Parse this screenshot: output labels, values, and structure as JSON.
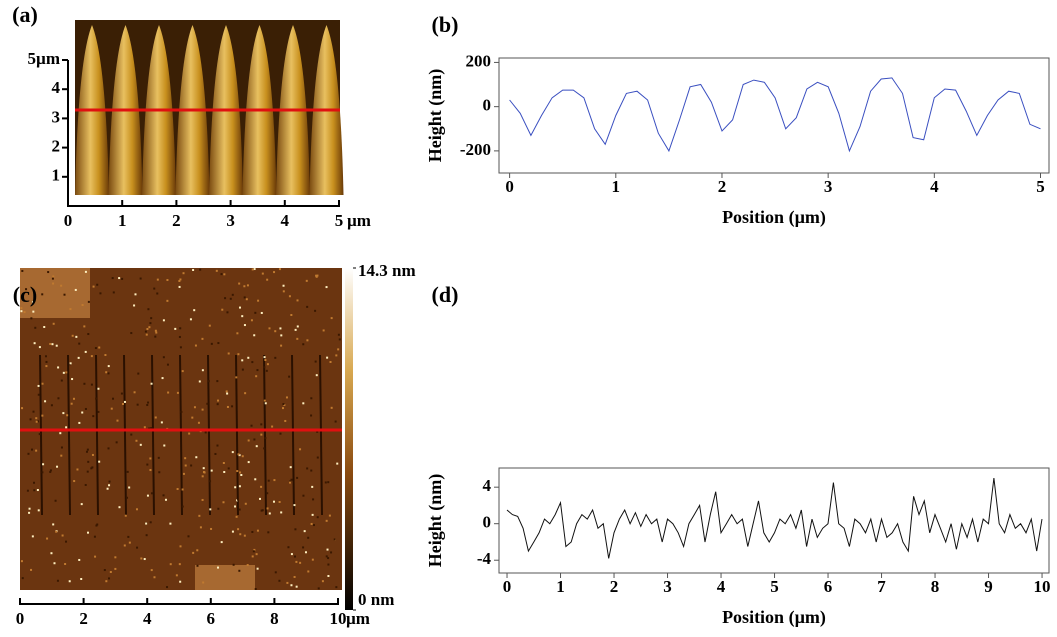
{
  "chart_data": [
    {
      "type": "image",
      "panel_label": "(a)",
      "xlim": [
        0,
        5
      ],
      "xticks": [
        0,
        1,
        2,
        3,
        4,
        5
      ],
      "ylim": [
        0,
        5
      ],
      "yticks": [
        1,
        2,
        3,
        4,
        {
          "value": 5,
          "label": "5µm"
        }
      ],
      "x_unit": "µm"
    },
    {
      "type": "line",
      "panel_label": "(b)",
      "xlabel": "Position (µm)",
      "ylabel": "Height (nm)",
      "color": "#3a4fc0",
      "xlim": [
        -0.1,
        5.08
      ],
      "xticks": [
        0,
        1,
        2,
        3,
        4,
        5
      ],
      "ylim": [
        -300,
        220
      ],
      "yticks": [
        -200,
        0,
        200
      ],
      "x": [
        0,
        0.1,
        0.2,
        0.3,
        0.4,
        0.5,
        0.6,
        0.7,
        0.8,
        0.9,
        1,
        1.1,
        1.2,
        1.3,
        1.4,
        1.5,
        1.6,
        1.7,
        1.8,
        1.9,
        2,
        2.1,
        2.2,
        2.3,
        2.4,
        2.5,
        2.6,
        2.7,
        2.8,
        2.9,
        3,
        3.1,
        3.2,
        3.3,
        3.4,
        3.5,
        3.6,
        3.7,
        3.8,
        3.9,
        4,
        4.1,
        4.2,
        4.3,
        4.4,
        4.5,
        4.6,
        4.7,
        4.8,
        4.9,
        5
      ],
      "values": [
        30,
        -30,
        -130,
        -40,
        40,
        75,
        75,
        40,
        -100,
        -170,
        -40,
        60,
        70,
        30,
        -120,
        -200,
        -60,
        90,
        100,
        20,
        -110,
        -60,
        100,
        120,
        110,
        40,
        -100,
        -50,
        80,
        110,
        90,
        -30,
        -200,
        -90,
        70,
        125,
        130,
        60,
        -140,
        -150,
        40,
        80,
        75,
        -20,
        -130,
        -40,
        30,
        70,
        60,
        -80,
        -100
      ]
    },
    {
      "type": "image",
      "panel_label": "(c)",
      "xlim": [
        0,
        10
      ],
      "xticks": [
        0,
        2,
        4,
        6,
        8,
        10
      ],
      "x_unit": "µm",
      "colorbar": {
        "lim": [
          0,
          14.3
        ],
        "ticks": [
          {
            "value": 0,
            "label": "0 nm"
          },
          {
            "value": 14.3,
            "label": "14.3 nm"
          }
        ]
      }
    },
    {
      "type": "line",
      "panel_label": "(d)",
      "xlabel": "Position (µm)",
      "ylabel": "Height (nm)",
      "color": "#111111",
      "xlim": [
        -0.15,
        10.13
      ],
      "xticks": [
        0,
        1,
        2,
        3,
        4,
        5,
        6,
        7,
        8,
        9,
        10
      ],
      "ylim": [
        -5.4,
        6.1
      ],
      "yticks": [
        -4,
        0,
        4
      ],
      "x": [
        0,
        0.1,
        0.2,
        0.3,
        0.4,
        0.5,
        0.6,
        0.7,
        0.8,
        0.9,
        1,
        1.1,
        1.2,
        1.3,
        1.4,
        1.5,
        1.6,
        1.7,
        1.8,
        1.9,
        2,
        2.1,
        2.2,
        2.3,
        2.4,
        2.5,
        2.6,
        2.7,
        2.8,
        2.9,
        3,
        3.1,
        3.2,
        3.3,
        3.4,
        3.5,
        3.6,
        3.7,
        3.8,
        3.9,
        4,
        4.1,
        4.2,
        4.3,
        4.4,
        4.5,
        4.6,
        4.7,
        4.8,
        4.9,
        5,
        5.1,
        5.2,
        5.3,
        5.4,
        5.5,
        5.6,
        5.7,
        5.8,
        5.9,
        6,
        6.1,
        6.2,
        6.3,
        6.4,
        6.5,
        6.6,
        6.7,
        6.8,
        6.9,
        7,
        7.1,
        7.2,
        7.3,
        7.4,
        7.5,
        7.6,
        7.7,
        7.8,
        7.9,
        8,
        8.1,
        8.2,
        8.3,
        8.4,
        8.5,
        8.6,
        8.7,
        8.8,
        8.9,
        9,
        9.1,
        9.2,
        9.3,
        9.4,
        9.5,
        9.6,
        9.7,
        9.8,
        9.9,
        10
      ],
      "values": [
        1.5,
        1,
        0.8,
        -0.5,
        -3,
        -2,
        -1,
        0.5,
        0,
        1,
        2.3,
        -2.5,
        -2,
        0,
        1,
        0.5,
        1.5,
        -0.5,
        0,
        -3.8,
        -1,
        0.5,
        1.5,
        0,
        1.2,
        -0.3,
        1,
        0,
        0.5,
        -2,
        0.5,
        0,
        -1,
        -2.5,
        0,
        1,
        2,
        -2,
        1,
        3.5,
        -1,
        0,
        1,
        0,
        0.5,
        -2.5,
        0,
        2.5,
        -1,
        -2,
        -1,
        0.5,
        0,
        1,
        -0.5,
        1.5,
        -2.5,
        0.5,
        -1.5,
        -0.5,
        0,
        4.5,
        0,
        -0.5,
        -2.5,
        0.5,
        0,
        -1,
        0.5,
        -2,
        0.5,
        -1.5,
        -1,
        0,
        -2,
        -3,
        3,
        1,
        2.5,
        -1,
        1,
        -0.5,
        -2,
        0,
        -2.8,
        0,
        -1.5,
        0.5,
        -2,
        0.5,
        0,
        5,
        0,
        -1,
        1,
        -0.5,
        0,
        -1,
        0.5,
        -3,
        0.5
      ]
    }
  ]
}
